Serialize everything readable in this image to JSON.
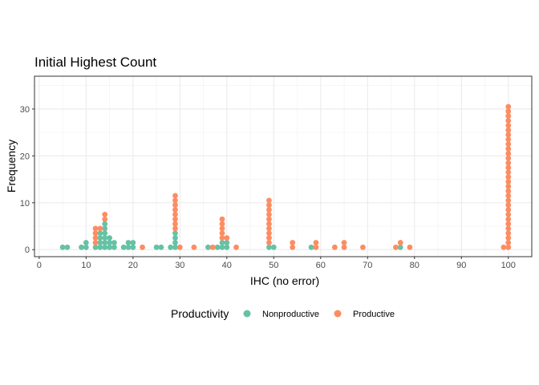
{
  "chart_data": {
    "type": "scatter",
    "title": "Initial Highest Count",
    "xlabel": "IHC (no error)",
    "ylabel": "Frequency",
    "xlim": [
      -1,
      105
    ],
    "ylim": [
      -1.5,
      37
    ],
    "xticks": [
      0,
      10,
      20,
      30,
      40,
      50,
      60,
      70,
      80,
      90,
      100
    ],
    "yticks": [
      0,
      10,
      20,
      30
    ],
    "grid": true,
    "legend": {
      "title": "Productivity",
      "position": "bottom",
      "entries": [
        {
          "label": "Nonproductive",
          "color": "#66c2a5"
        },
        {
          "label": "Productive",
          "color": "#fc8d62"
        }
      ]
    },
    "series": [
      {
        "name": "Nonproductive",
        "color": "#66c2a5",
        "points": [
          {
            "x": 5,
            "count": 1
          },
          {
            "x": 6,
            "count": 1
          },
          {
            "x": 9,
            "count": 1
          },
          {
            "x": 10,
            "count": 2
          },
          {
            "x": 12,
            "count": 1
          },
          {
            "x": 13,
            "count": 4
          },
          {
            "x": 14,
            "count": 6
          },
          {
            "x": 15,
            "count": 3
          },
          {
            "x": 16,
            "count": 2
          },
          {
            "x": 18,
            "count": 1
          },
          {
            "x": 19,
            "count": 2
          },
          {
            "x": 20,
            "count": 2
          },
          {
            "x": 25,
            "count": 1
          },
          {
            "x": 26,
            "count": 1
          },
          {
            "x": 28,
            "count": 1
          },
          {
            "x": 29,
            "count": 4
          },
          {
            "x": 36,
            "count": 1
          },
          {
            "x": 38,
            "count": 1
          },
          {
            "x": 39,
            "count": 2
          },
          {
            "x": 40,
            "count": 2
          },
          {
            "x": 49,
            "count": 1
          },
          {
            "x": 50,
            "count": 1
          },
          {
            "x": 58,
            "count": 1
          },
          {
            "x": 77,
            "count": 1
          }
        ]
      },
      {
        "name": "Productive",
        "color": "#fc8d62",
        "points": [
          {
            "x": 12,
            "count": 4
          },
          {
            "x": 13,
            "count": 1
          },
          {
            "x": 14,
            "count": 2
          },
          {
            "x": 22,
            "count": 1
          },
          {
            "x": 29,
            "count": 8
          },
          {
            "x": 30,
            "count": 1
          },
          {
            "x": 33,
            "count": 1
          },
          {
            "x": 37,
            "count": 1
          },
          {
            "x": 39,
            "count": 5
          },
          {
            "x": 40,
            "count": 1
          },
          {
            "x": 42,
            "count": 1
          },
          {
            "x": 49,
            "count": 10
          },
          {
            "x": 54,
            "count": 2
          },
          {
            "x": 59,
            "count": 2
          },
          {
            "x": 63,
            "count": 1
          },
          {
            "x": 65,
            "count": 2
          },
          {
            "x": 69,
            "count": 1
          },
          {
            "x": 76,
            "count": 1
          },
          {
            "x": 77,
            "count": 1
          },
          {
            "x": 79,
            "count": 1
          },
          {
            "x": 99,
            "count": 1
          },
          {
            "x": 100,
            "count": 31
          }
        ]
      }
    ]
  }
}
